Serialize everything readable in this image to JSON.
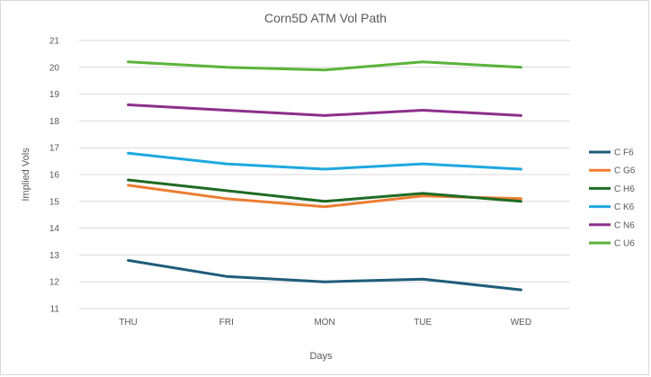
{
  "chart_data": {
    "type": "line",
    "title": "Corn5D ATM Vol Path",
    "xlabel": "Days",
    "ylabel": "Implied Vols",
    "categories": [
      "THU",
      "FRI",
      "MON",
      "TUE",
      "WED"
    ],
    "ylim": [
      11,
      21
    ],
    "yticks": [
      11,
      12,
      13,
      14,
      15,
      16,
      17,
      18,
      19,
      20,
      21
    ],
    "grid": true,
    "legend_position": "right",
    "series": [
      {
        "name": "C F6",
        "color": "#1f5c7a",
        "values": [
          12.8,
          12.2,
          12.0,
          12.1,
          11.7
        ]
      },
      {
        "name": "C G6",
        "color": "#ed7d31",
        "values": [
          15.6,
          15.1,
          14.8,
          15.2,
          15.1
        ]
      },
      {
        "name": "C H6",
        "color": "#1e6b24",
        "values": [
          15.8,
          15.4,
          15.0,
          15.3,
          15.0
        ]
      },
      {
        "name": "C K6",
        "color": "#1fa8e0",
        "values": [
          16.8,
          16.4,
          16.2,
          16.4,
          16.2
        ]
      },
      {
        "name": "C N6",
        "color": "#8c2f8c",
        "values": [
          18.6,
          18.4,
          18.2,
          18.4,
          18.2
        ]
      },
      {
        "name": "C U6",
        "color": "#5bb33a",
        "values": [
          20.2,
          20.0,
          19.9,
          20.2,
          20.0
        ]
      }
    ]
  }
}
